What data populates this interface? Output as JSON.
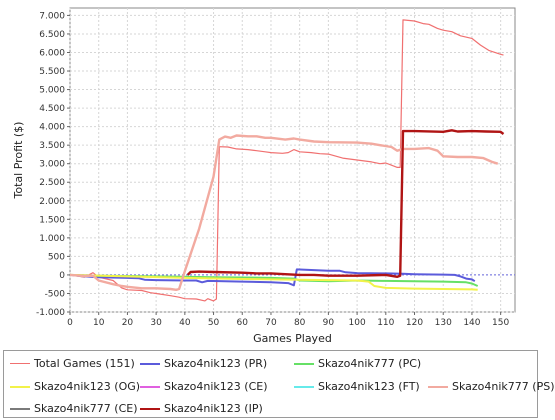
{
  "chart_data": {
    "type": "line",
    "title": "",
    "xlabel": "Games Played",
    "ylabel": "Total Profit ($)",
    "xlim": [
      0,
      155
    ],
    "ylim": [
      -1000,
      7200
    ],
    "x_ticks": [
      0,
      10,
      20,
      30,
      40,
      50,
      60,
      70,
      80,
      90,
      100,
      110,
      120,
      130,
      140,
      150
    ],
    "y_ticks": [
      -1000,
      -500,
      0,
      500,
      1000,
      1500,
      2000,
      2500,
      3000,
      3500,
      4000,
      4500,
      5000,
      5500,
      6000,
      6500,
      7000
    ],
    "y_tick_labels": [
      "-1.000",
      "-500",
      "0",
      "500",
      "1.000",
      "1.500",
      "2.000",
      "2.500",
      "3.000",
      "3.500",
      "4.000",
      "4.500",
      "5.000",
      "5.500",
      "6.000",
      "6.500",
      "7.000"
    ],
    "grid": true,
    "legend_position": "bottom",
    "series": [
      {
        "name": "Total Games (151)",
        "color": "#f07070",
        "width": 1.2,
        "points": [
          [
            0,
            0
          ],
          [
            5,
            -60
          ],
          [
            8,
            60
          ],
          [
            10,
            -60
          ],
          [
            15,
            -150
          ],
          [
            18,
            -350
          ],
          [
            20,
            -400
          ],
          [
            25,
            -420
          ],
          [
            28,
            -480
          ],
          [
            30,
            -500
          ],
          [
            35,
            -560
          ],
          [
            38,
            -600
          ],
          [
            40,
            -640
          ],
          [
            44,
            -650
          ],
          [
            47,
            -700
          ],
          [
            48,
            -640
          ],
          [
            50,
            -700
          ],
          [
            51,
            -650
          ],
          [
            52,
            3460
          ],
          [
            55,
            3450
          ],
          [
            58,
            3400
          ],
          [
            62,
            3380
          ],
          [
            65,
            3350
          ],
          [
            68,
            3320
          ],
          [
            70,
            3300
          ],
          [
            74,
            3280
          ],
          [
            76,
            3300
          ],
          [
            78,
            3380
          ],
          [
            80,
            3320
          ],
          [
            84,
            3300
          ],
          [
            87,
            3270
          ],
          [
            90,
            3260
          ],
          [
            95,
            3150
          ],
          [
            100,
            3100
          ],
          [
            105,
            3050
          ],
          [
            108,
            3000
          ],
          [
            110,
            3020
          ],
          [
            112,
            2960
          ],
          [
            114,
            2900
          ],
          [
            115,
            2900
          ],
          [
            116,
            6880
          ],
          [
            120,
            6850
          ],
          [
            123,
            6780
          ],
          [
            125,
            6760
          ],
          [
            128,
            6650
          ],
          [
            130,
            6600
          ],
          [
            133,
            6560
          ],
          [
            136,
            6450
          ],
          [
            140,
            6380
          ],
          [
            143,
            6200
          ],
          [
            146,
            6050
          ],
          [
            150,
            5950
          ],
          [
            151,
            5930
          ]
        ]
      },
      {
        "name": "Skazo4nik123 (PR)",
        "color": "#5b5bdb",
        "width": 2,
        "points": [
          [
            0,
            0
          ],
          [
            5,
            -40
          ],
          [
            10,
            -60
          ],
          [
            20,
            -80
          ],
          [
            24,
            -90
          ],
          [
            26,
            -130
          ],
          [
            30,
            -140
          ],
          [
            40,
            -150
          ],
          [
            44,
            -150
          ],
          [
            46,
            -200
          ],
          [
            48,
            -160
          ],
          [
            60,
            -180
          ],
          [
            70,
            -200
          ],
          [
            76,
            -220
          ],
          [
            78,
            -280
          ],
          [
            79,
            150
          ],
          [
            85,
            130
          ],
          [
            90,
            110
          ],
          [
            94,
            110
          ],
          [
            96,
            70
          ],
          [
            100,
            50
          ],
          [
            110,
            40
          ],
          [
            116,
            30
          ],
          [
            120,
            20
          ],
          [
            130,
            10
          ],
          [
            134,
            0
          ],
          [
            136,
            -40
          ],
          [
            138,
            -100
          ],
          [
            140,
            -120
          ],
          [
            141,
            -170
          ]
        ]
      },
      {
        "name": "Skazo4nik777 (PC)",
        "color": "#66e066",
        "width": 2,
        "points": [
          [
            0,
            0
          ],
          [
            10,
            -20
          ],
          [
            20,
            -30
          ],
          [
            30,
            -40
          ],
          [
            40,
            -50
          ],
          [
            50,
            -60
          ],
          [
            60,
            -70
          ],
          [
            70,
            -80
          ],
          [
            78,
            -100
          ],
          [
            80,
            -150
          ],
          [
            90,
            -170
          ],
          [
            100,
            -150
          ],
          [
            110,
            -160
          ],
          [
            120,
            -170
          ],
          [
            130,
            -180
          ],
          [
            138,
            -200
          ],
          [
            140,
            -230
          ],
          [
            142,
            -300
          ]
        ]
      },
      {
        "name": "Skazo4nik123 (OG)",
        "color": "#f2f24a",
        "width": 2,
        "points": [
          [
            0,
            0
          ],
          [
            20,
            -40
          ],
          [
            40,
            -80
          ],
          [
            60,
            -110
          ],
          [
            80,
            -130
          ],
          [
            100,
            -150
          ],
          [
            104,
            -180
          ],
          [
            106,
            -300
          ],
          [
            110,
            -350
          ],
          [
            120,
            -370
          ],
          [
            130,
            -380
          ],
          [
            140,
            -390
          ],
          [
            142,
            -400
          ]
        ]
      },
      {
        "name": "Skazo4nik123 (CE)",
        "color": "#e060e0",
        "width": 2,
        "points": []
      },
      {
        "name": "Skazo4nik123 (FT)",
        "color": "#66eaea",
        "width": 2,
        "points": []
      },
      {
        "name": "Skazo4nik777 (PS)",
        "color": "#f2aaa0",
        "width": 2.4,
        "points": [
          [
            0,
            0
          ],
          [
            5,
            -30
          ],
          [
            8,
            -20
          ],
          [
            10,
            -150
          ],
          [
            15,
            -250
          ],
          [
            18,
            -300
          ],
          [
            20,
            -320
          ],
          [
            25,
            -360
          ],
          [
            30,
            -360
          ],
          [
            35,
            -380
          ],
          [
            37,
            -400
          ],
          [
            38,
            -380
          ],
          [
            40,
            100
          ],
          [
            45,
            1250
          ],
          [
            50,
            2650
          ],
          [
            52,
            3650
          ],
          [
            54,
            3730
          ],
          [
            56,
            3700
          ],
          [
            58,
            3760
          ],
          [
            62,
            3740
          ],
          [
            65,
            3740
          ],
          [
            68,
            3700
          ],
          [
            70,
            3700
          ],
          [
            75,
            3650
          ],
          [
            78,
            3680
          ],
          [
            80,
            3650
          ],
          [
            85,
            3600
          ],
          [
            90,
            3580
          ],
          [
            100,
            3570
          ],
          [
            105,
            3540
          ],
          [
            108,
            3500
          ],
          [
            112,
            3450
          ],
          [
            114,
            3350
          ],
          [
            116,
            3400
          ],
          [
            120,
            3400
          ],
          [
            125,
            3420
          ],
          [
            128,
            3350
          ],
          [
            130,
            3200
          ],
          [
            135,
            3180
          ],
          [
            140,
            3180
          ],
          [
            144,
            3150
          ],
          [
            147,
            3050
          ],
          [
            149,
            3000
          ]
        ]
      },
      {
        "name": "Skazo4nik777 (CE)",
        "color": "#7a7a7a",
        "width": 2,
        "points": []
      },
      {
        "name": "Skazo4nik123 (IP)",
        "color": "#b01414",
        "width": 2.4,
        "points": [
          [
            41,
            0
          ],
          [
            42,
            80
          ],
          [
            45,
            90
          ],
          [
            50,
            80
          ],
          [
            60,
            60
          ],
          [
            65,
            40
          ],
          [
            70,
            40
          ],
          [
            75,
            20
          ],
          [
            80,
            0
          ],
          [
            85,
            0
          ],
          [
            90,
            -20
          ],
          [
            100,
            -20
          ],
          [
            110,
            0
          ],
          [
            114,
            -50
          ],
          [
            115,
            -20
          ],
          [
            116,
            3880
          ],
          [
            120,
            3880
          ],
          [
            130,
            3860
          ],
          [
            133,
            3900
          ],
          [
            135,
            3870
          ],
          [
            140,
            3880
          ],
          [
            145,
            3870
          ],
          [
            150,
            3860
          ],
          [
            151,
            3800
          ]
        ]
      }
    ]
  }
}
